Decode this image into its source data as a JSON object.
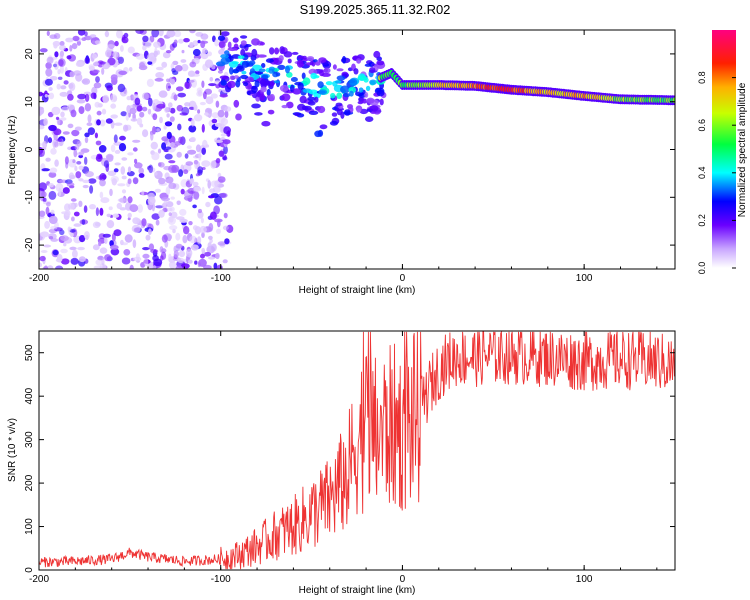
{
  "title": "S199.2025.365.11.32.R02",
  "colors": {
    "axis": "#000000",
    "snr_line": "#ee3333",
    "background": "#ffffff"
  },
  "chart_data": [
    {
      "type": "heatmap",
      "name": "spectrogram",
      "xlabel": "Height of straight line (km)",
      "ylabel": "Frequency (Hz)",
      "xlim": [
        -200,
        150
      ],
      "ylim": [
        -25,
        25
      ],
      "xticks": [
        -200,
        -100,
        0,
        100
      ],
      "xtick_labels": [
        "-200",
        "-100",
        "0",
        "100"
      ],
      "yticks": [
        -20,
        -10,
        0,
        10,
        20
      ],
      "ytick_labels": [
        "-20",
        "-10",
        "0",
        "10",
        "20"
      ],
      "signal_track": {
        "height_km": [
          -100,
          -80,
          -60,
          -45,
          -30,
          -20,
          -12,
          -6,
          0,
          20,
          40,
          60,
          80,
          100,
          120,
          150
        ],
        "frequency_hz": [
          19,
          17,
          15,
          13,
          13,
          13.5,
          15,
          16,
          13.5,
          13.5,
          13.3,
          12.5,
          12.0,
          11.2,
          10.5,
          10.3
        ],
        "peak_amplitude": [
          0.15,
          0.2,
          0.25,
          0.3,
          0.35,
          0.45,
          0.6,
          0.5,
          0.55,
          0.65,
          0.8,
          0.85,
          0.7,
          0.75,
          0.6,
          0.55
        ]
      },
      "noise_region_km": [
        -200,
        -95
      ],
      "colorbar": {
        "label": "Normalized spectral amplitude",
        "range": [
          0,
          1
        ],
        "ticks": [
          0.0,
          0.2,
          0.4,
          0.6,
          0.8
        ],
        "tick_labels": [
          "0.0",
          "0.2",
          "0.4",
          "0.6",
          "0.8"
        ]
      }
    },
    {
      "type": "line",
      "name": "snr",
      "xlabel": "Height of straight line (km)",
      "ylabel": "SNR (10 * v/v)",
      "xlim": [
        -200,
        150
      ],
      "ylim": [
        0,
        550
      ],
      "xticks": [
        -200,
        -100,
        0,
        100
      ],
      "xtick_labels": [
        "-200",
        "-100",
        "0",
        "100"
      ],
      "yticks": [
        0,
        100,
        200,
        300,
        400,
        500
      ],
      "ytick_labels": [
        "0",
        "100",
        "200",
        "300",
        "400",
        "500"
      ],
      "series": [
        {
          "name": "SNR",
          "x": [
            -200,
            -180,
            -160,
            -150,
            -140,
            -120,
            -100,
            -90,
            -80,
            -70,
            -60,
            -50,
            -40,
            -30,
            -25,
            -20,
            -15,
            -10,
            -5,
            0,
            5,
            10,
            15,
            20,
            25,
            30,
            40,
            50,
            60,
            80,
            100,
            120,
            140,
            150
          ],
          "y": [
            18,
            20,
            25,
            40,
            30,
            20,
            25,
            35,
            55,
            80,
            100,
            130,
            160,
            220,
            300,
            330,
            310,
            320,
            330,
            320,
            340,
            370,
            420,
            460,
            480,
            490,
            490,
            495,
            495,
            490,
            480,
            485,
            480,
            470
          ]
        }
      ]
    }
  ]
}
